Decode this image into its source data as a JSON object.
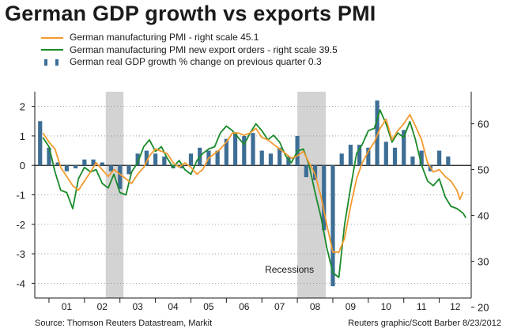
{
  "title": "German GDP growth vs exports PMI",
  "source": "Source: Thomson Reuters Datastream, Markit",
  "credit": "Reuters graphic/Scott Barber 8/23/2012",
  "colors": {
    "pmi": "#f39a2e",
    "export": "#1a8a2a",
    "gdp": "#3d6e95",
    "recession": "#d3d3d3",
    "grid": "#888888",
    "axis": "#1a1a1a"
  },
  "legend": [
    {
      "label": "German manufacturing PMI - right scale 45.1",
      "key": "pmi"
    },
    {
      "label": "German manufacturing PMI new export orders - right scale 39.5",
      "key": "export"
    },
    {
      "label": "German real GDP growth % change on previous quarter 0.3",
      "key": "gdp"
    }
  ],
  "chart_data": {
    "type": "bar+line",
    "title": "German GDP growth vs exports PMI",
    "left_axis": {
      "ylim": [
        -4.5,
        2.5
      ],
      "ticks": [
        -4,
        -3,
        -2,
        -1,
        0,
        1,
        2
      ]
    },
    "right_axis": {
      "ylim": [
        22,
        67
      ],
      "ticks": [
        20,
        30,
        40,
        50,
        60
      ]
    },
    "x_ticks": [
      "01",
      "02",
      "03",
      "04",
      "05",
      "06",
      "07",
      "08",
      "09",
      "10",
      "11",
      "12"
    ],
    "x_range": [
      2000.6,
      2012.9
    ],
    "recessions": [
      {
        "start": 2002.6,
        "end": 2003.1
      },
      {
        "start": 2008.0,
        "end": 2008.8
      }
    ],
    "recession_label": "Recessions",
    "series": [
      {
        "name": "German real GDP growth % change on previous quarter",
        "axis": "left",
        "kind": "bar",
        "points": [
          [
            2000.75,
            1.5
          ],
          [
            2001.0,
            0.6
          ],
          [
            2001.25,
            0.1
          ],
          [
            2001.5,
            -0.2
          ],
          [
            2001.75,
            -0.1
          ],
          [
            2002.0,
            0.2
          ],
          [
            2002.25,
            0.2
          ],
          [
            2002.5,
            0.1
          ],
          [
            2002.75,
            -0.2
          ],
          [
            2003.0,
            -0.8
          ],
          [
            2003.25,
            -0.3
          ],
          [
            2003.5,
            0.4
          ],
          [
            2003.75,
            0.5
          ],
          [
            2004.0,
            0.4
          ],
          [
            2004.25,
            0.3
          ],
          [
            2004.5,
            -0.1
          ],
          [
            2004.75,
            -0.1
          ],
          [
            2005.0,
            0.4
          ],
          [
            2005.25,
            0.6
          ],
          [
            2005.5,
            0.5
          ],
          [
            2005.75,
            0.5
          ],
          [
            2006.0,
            0.9
          ],
          [
            2006.25,
            1.1
          ],
          [
            2006.5,
            1.0
          ],
          [
            2006.75,
            1.1
          ],
          [
            2007.0,
            0.5
          ],
          [
            2007.25,
            0.4
          ],
          [
            2007.5,
            0.6
          ],
          [
            2007.75,
            0.3
          ],
          [
            2008.0,
            1.0
          ],
          [
            2008.25,
            -0.4
          ],
          [
            2008.5,
            -0.5
          ],
          [
            2008.75,
            -2.2
          ],
          [
            2009.0,
            -4.1
          ],
          [
            2009.25,
            0.4
          ],
          [
            2009.5,
            0.7
          ],
          [
            2009.75,
            0.7
          ],
          [
            2010.0,
            0.6
          ],
          [
            2010.25,
            2.2
          ],
          [
            2010.5,
            0.8
          ],
          [
            2010.75,
            0.6
          ],
          [
            2011.0,
            1.2
          ],
          [
            2011.25,
            0.3
          ],
          [
            2011.5,
            0.5
          ],
          [
            2011.75,
            -0.2
          ],
          [
            2012.0,
            0.5
          ],
          [
            2012.25,
            0.3
          ]
        ]
      },
      {
        "name": "German manufacturing PMI",
        "axis": "right",
        "kind": "line",
        "points": [
          [
            2000.83,
            58.0
          ],
          [
            2001.0,
            56.0
          ],
          [
            2001.17,
            54.5
          ],
          [
            2001.33,
            50.5
          ],
          [
            2001.5,
            48.5
          ],
          [
            2001.67,
            46.5
          ],
          [
            2001.83,
            45.5
          ],
          [
            2002.0,
            47.5
          ],
          [
            2002.17,
            49.5
          ],
          [
            2002.33,
            51.5
          ],
          [
            2002.5,
            50.0
          ],
          [
            2002.67,
            48.5
          ],
          [
            2002.83,
            50.0
          ],
          [
            2003.0,
            49.0
          ],
          [
            2003.17,
            48.0
          ],
          [
            2003.33,
            47.0
          ],
          [
            2003.5,
            49.0
          ],
          [
            2003.67,
            50.5
          ],
          [
            2003.83,
            53.0
          ],
          [
            2004.0,
            54.5
          ],
          [
            2004.17,
            54.0
          ],
          [
            2004.33,
            53.5
          ],
          [
            2004.5,
            51.5
          ],
          [
            2004.67,
            50.5
          ],
          [
            2004.83,
            51.5
          ],
          [
            2005.0,
            50.5
          ],
          [
            2005.17,
            49.0
          ],
          [
            2005.33,
            50.0
          ],
          [
            2005.5,
            52.5
          ],
          [
            2005.67,
            53.5
          ],
          [
            2005.83,
            54.5
          ],
          [
            2006.0,
            56.0
          ],
          [
            2006.17,
            58.0
          ],
          [
            2006.33,
            58.0
          ],
          [
            2006.5,
            57.5
          ],
          [
            2006.67,
            58.0
          ],
          [
            2006.83,
            59.0
          ],
          [
            2007.0,
            57.0
          ],
          [
            2007.17,
            56.5
          ],
          [
            2007.33,
            55.5
          ],
          [
            2007.5,
            54.5
          ],
          [
            2007.67,
            53.5
          ],
          [
            2007.83,
            52.5
          ],
          [
            2008.0,
            53.0
          ],
          [
            2008.17,
            54.0
          ],
          [
            2008.33,
            51.5
          ],
          [
            2008.5,
            49.0
          ],
          [
            2008.67,
            44.0
          ],
          [
            2008.83,
            38.0
          ],
          [
            2009.0,
            32.0
          ],
          [
            2009.17,
            32.0
          ],
          [
            2009.33,
            35.0
          ],
          [
            2009.5,
            42.0
          ],
          [
            2009.67,
            48.0
          ],
          [
            2009.83,
            51.5
          ],
          [
            2010.0,
            54.0
          ],
          [
            2010.17,
            56.0
          ],
          [
            2010.33,
            59.0
          ],
          [
            2010.5,
            61.0
          ],
          [
            2010.67,
            56.5
          ],
          [
            2010.83,
            58.5
          ],
          [
            2011.0,
            60.0
          ],
          [
            2011.17,
            62.0
          ],
          [
            2011.33,
            59.5
          ],
          [
            2011.5,
            56.5
          ],
          [
            2011.67,
            51.5
          ],
          [
            2011.83,
            49.5
          ],
          [
            2012.0,
            50.0
          ],
          [
            2012.17,
            48.5
          ],
          [
            2012.33,
            47.5
          ],
          [
            2012.5,
            45.5
          ],
          [
            2012.58,
            43.5
          ],
          [
            2012.67,
            45.1
          ]
        ]
      },
      {
        "name": "German manufacturing PMI new export orders",
        "axis": "right",
        "kind": "line",
        "points": [
          [
            2000.83,
            57.0
          ],
          [
            2001.0,
            55.0
          ],
          [
            2001.17,
            49.5
          ],
          [
            2001.33,
            45.5
          ],
          [
            2001.5,
            45.0
          ],
          [
            2001.67,
            41.5
          ],
          [
            2001.83,
            48.0
          ],
          [
            2002.0,
            50.5
          ],
          [
            2002.17,
            49.5
          ],
          [
            2002.33,
            50.0
          ],
          [
            2002.5,
            47.0
          ],
          [
            2002.67,
            46.0
          ],
          [
            2002.83,
            49.0
          ],
          [
            2003.0,
            45.0
          ],
          [
            2003.17,
            44.5
          ],
          [
            2003.33,
            49.5
          ],
          [
            2003.5,
            51.5
          ],
          [
            2003.67,
            55.0
          ],
          [
            2003.83,
            56.5
          ],
          [
            2004.0,
            54.0
          ],
          [
            2004.17,
            55.0
          ],
          [
            2004.33,
            52.5
          ],
          [
            2004.5,
            50.5
          ],
          [
            2004.67,
            52.0
          ],
          [
            2004.83,
            50.0
          ],
          [
            2005.0,
            49.0
          ],
          [
            2005.17,
            52.0
          ],
          [
            2005.33,
            53.5
          ],
          [
            2005.5,
            54.5
          ],
          [
            2005.67,
            55.0
          ],
          [
            2005.83,
            58.0
          ],
          [
            2006.0,
            59.5
          ],
          [
            2006.17,
            58.5
          ],
          [
            2006.33,
            57.0
          ],
          [
            2006.5,
            55.5
          ],
          [
            2006.67,
            58.0
          ],
          [
            2006.83,
            60.0
          ],
          [
            2007.0,
            58.5
          ],
          [
            2007.17,
            56.5
          ],
          [
            2007.33,
            57.5
          ],
          [
            2007.5,
            56.0
          ],
          [
            2007.67,
            53.0
          ],
          [
            2007.83,
            51.5
          ],
          [
            2008.0,
            54.0
          ],
          [
            2008.17,
            54.5
          ],
          [
            2008.33,
            51.0
          ],
          [
            2008.5,
            45.0
          ],
          [
            2008.67,
            39.5
          ],
          [
            2008.83,
            33.0
          ],
          [
            2009.0,
            27.5
          ],
          [
            2009.17,
            26.5
          ],
          [
            2009.33,
            38.0
          ],
          [
            2009.5,
            46.0
          ],
          [
            2009.67,
            53.5
          ],
          [
            2009.83,
            55.5
          ],
          [
            2010.0,
            58.5
          ],
          [
            2010.17,
            59.0
          ],
          [
            2010.33,
            63.0
          ],
          [
            2010.5,
            60.0
          ],
          [
            2010.67,
            56.0
          ],
          [
            2010.83,
            58.0
          ],
          [
            2011.0,
            57.0
          ],
          [
            2011.17,
            60.5
          ],
          [
            2011.33,
            56.5
          ],
          [
            2011.5,
            51.0
          ],
          [
            2011.67,
            47.5
          ],
          [
            2011.83,
            46.5
          ],
          [
            2012.0,
            48.0
          ],
          [
            2012.17,
            44.0
          ],
          [
            2012.33,
            42.0
          ],
          [
            2012.5,
            41.5
          ],
          [
            2012.67,
            40.5
          ],
          [
            2012.75,
            39.5
          ]
        ]
      }
    ]
  }
}
